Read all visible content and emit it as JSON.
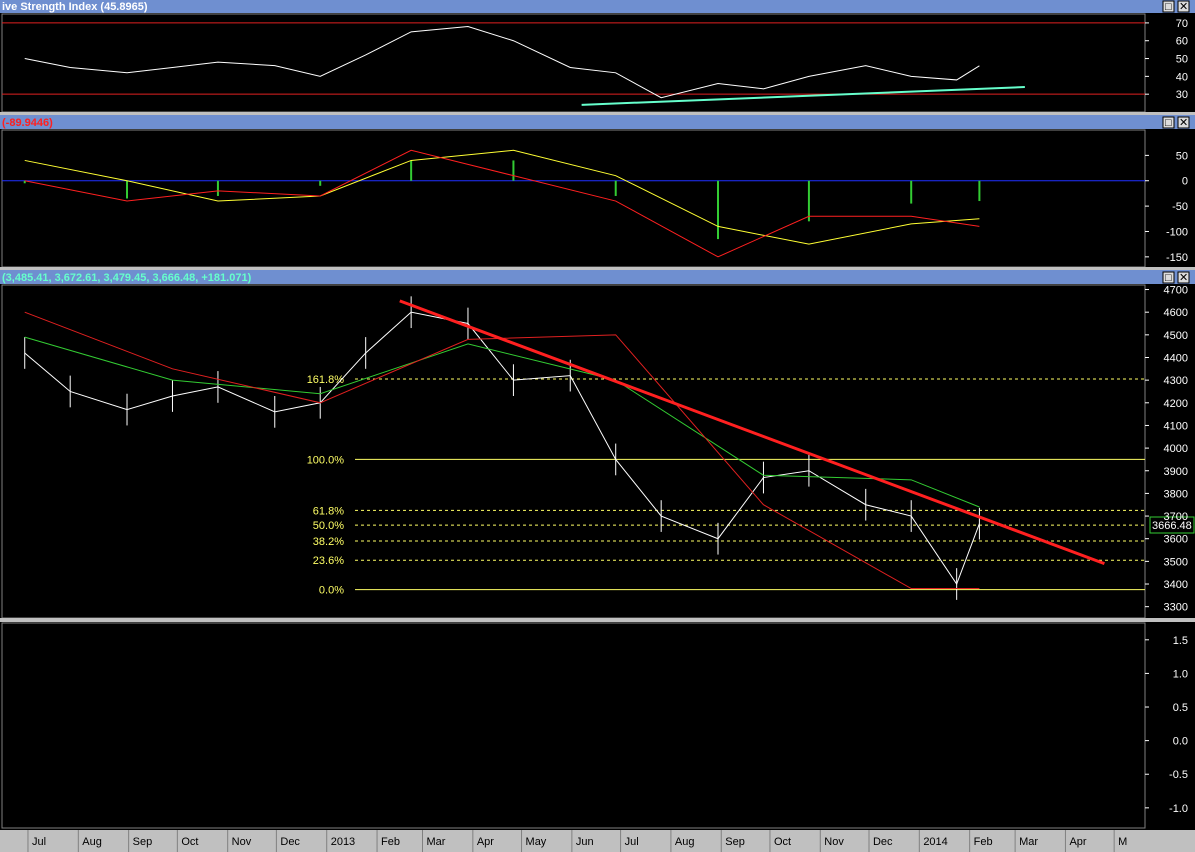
{
  "panes": {
    "rsi": {
      "title": "ive Strength Index (45.8965)"
    },
    "macd": {
      "title": "(-89.9446)"
    },
    "price": {
      "title": "(3,485.41, 3,672.61, 3,479.45, 3,666.48, +181.071)",
      "last_label": "3666.48"
    }
  },
  "buttons": {
    "restore": "□",
    "close": "✕"
  },
  "colors": {
    "bg": "#000000",
    "title_bar": "#6f8fd0",
    "axis_bg": "#000000",
    "price": "#ffffff",
    "sma_green": "#33cc33",
    "wave_red": "#e02020",
    "trend_red": "#ff2020",
    "fib_yellow": "#ffff66",
    "rsi_line": "#ffffff",
    "rsi_support": "#66ffcc",
    "macd_signal": "#ffff33",
    "macd_line": "#ff2020",
    "macd_hist": "#33cc33",
    "zero_line": "#2030ff",
    "date_axis_bg": "#c0c0c0"
  },
  "chart_data": [
    {
      "type": "line",
      "title": "ive Strength Index (45.8965)",
      "y_ticks": [
        30,
        40,
        50,
        60,
        70
      ],
      "ylim": [
        20,
        75
      ],
      "x": [
        "2012-06-29",
        "2012-07-27",
        "2012-08-31",
        "2012-09-28",
        "2012-10-26",
        "2012-11-30",
        "2012-12-28",
        "2013-01-25",
        "2013-02-22",
        "2013-03-29",
        "2013-04-26",
        "2013-05-31",
        "2013-06-28",
        "2013-07-26",
        "2013-08-30",
        "2013-09-27",
        "2013-10-25",
        "2013-11-29",
        "2013-12-27",
        "2014-01-24",
        "2014-02-07"
      ],
      "values": [
        50,
        45,
        42,
        45,
        48,
        46,
        40,
        52,
        65,
        68,
        60,
        45,
        42,
        28,
        36,
        33,
        40,
        46,
        40,
        38,
        45.8965
      ],
      "reference_lines": [
        30,
        70
      ],
      "support_line": {
        "from": {
          "date": "2013-06-07",
          "value": 24
        },
        "to": {
          "date": "2014-03-07",
          "value": 34
        }
      }
    },
    {
      "type": "line",
      "title": "(-89.9446)",
      "y_ticks": [
        -150,
        -100,
        -50,
        0,
        50
      ],
      "ylim": [
        -170,
        100
      ],
      "x": [
        "2012-06-29",
        "2012-08-31",
        "2012-10-26",
        "2012-12-28",
        "2013-02-22",
        "2013-04-26",
        "2013-06-28",
        "2013-08-30",
        "2013-10-25",
        "2013-12-27",
        "2014-02-07"
      ],
      "series": [
        {
          "values": [
            40,
            0,
            -40,
            -30,
            40,
            60,
            10,
            -90,
            -125,
            -85,
            -75
          ]
        },
        {
          "values": [
            0,
            -40,
            -20,
            -30,
            60,
            10,
            -40,
            -150,
            -70,
            -70,
            -89.9446
          ]
        },
        {
          "type": "bar",
          "values": [
            -5,
            -35,
            -30,
            -10,
            40,
            40,
            -30,
            -115,
            -80,
            -45,
            -40
          ]
        }
      ]
    },
    {
      "type": "line",
      "title": "(3,485.41, 3,672.61, 3,479.45, 3,666.48, +181.071)",
      "y_ticks": [
        3300,
        3400,
        3500,
        3600,
        3700,
        3800,
        3900,
        4000,
        4100,
        4200,
        4300,
        4400,
        4500,
        4600,
        4700
      ],
      "ylim": [
        3250,
        4720
      ],
      "x_ticks": [
        "Jul",
        "Aug",
        "Sep",
        "Oct",
        "Nov",
        "Dec",
        "2013",
        "Feb",
        "Mar",
        "Apr",
        "May",
        "Jun",
        "Jul",
        "Aug",
        "Sep",
        "Oct",
        "Nov",
        "Dec",
        "2014",
        "Feb",
        "Mar",
        "Apr",
        "M"
      ],
      "series": [
        {
          "type": "ohlc",
          "x": [
            "2012-06-29",
            "2012-07-27",
            "2012-08-31",
            "2012-09-28",
            "2012-10-26",
            "2012-11-30",
            "2012-12-28",
            "2013-01-25",
            "2013-02-22",
            "2013-03-29",
            "2013-04-26",
            "2013-05-31",
            "2013-06-28",
            "2013-07-26",
            "2013-08-30",
            "2013-09-27",
            "2013-10-25",
            "2013-11-29",
            "2013-12-27",
            "2014-01-24",
            "2014-02-07"
          ],
          "values": [
            4420,
            4250,
            4170,
            4230,
            4270,
            4160,
            4200,
            4420,
            4600,
            4550,
            4300,
            4320,
            3950,
            3700,
            3600,
            3870,
            3900,
            3750,
            3700,
            3400,
            3666.48
          ]
        },
        {
          "x": [
            "2012-06-29",
            "2012-09-28",
            "2012-12-28",
            "2013-03-29",
            "2013-06-28",
            "2013-09-27",
            "2013-12-27",
            "2014-02-07"
          ],
          "values": [
            4490,
            4300,
            4240,
            4460,
            4300,
            3880,
            3860,
            3740
          ]
        },
        {
          "x": [
            "2012-06-29",
            "2012-09-28",
            "2012-12-28",
            "2013-03-29",
            "2013-06-28",
            "2013-09-27",
            "2013-12-27",
            "2014-02-07"
          ],
          "values": [
            4600,
            4350,
            4200,
            4480,
            4500,
            3750,
            3380,
            3380
          ]
        }
      ],
      "trend_line": {
        "from": {
          "date": "2013-02-15",
          "value": 4650
        },
        "to": {
          "date": "2014-04-25",
          "value": 3490
        }
      },
      "fib_levels": [
        {
          "label": "161.8%",
          "value": 4305
        },
        {
          "label": "100.0%",
          "value": 3950
        },
        {
          "label": "61.8%",
          "value": 3725
        },
        {
          "label": "50.0%",
          "value": 3660
        },
        {
          "label": "38.2%",
          "value": 3590
        },
        {
          "label": "23.6%",
          "value": 3505
        },
        {
          "label": "0.0%",
          "value": 3375
        }
      ],
      "last_value": 3666.48
    },
    {
      "type": "line",
      "y_ticks": [
        -1.0,
        -0.5,
        0.0,
        0.5,
        1.0,
        1.5
      ],
      "ylim": [
        -1.3,
        1.75
      ]
    }
  ]
}
